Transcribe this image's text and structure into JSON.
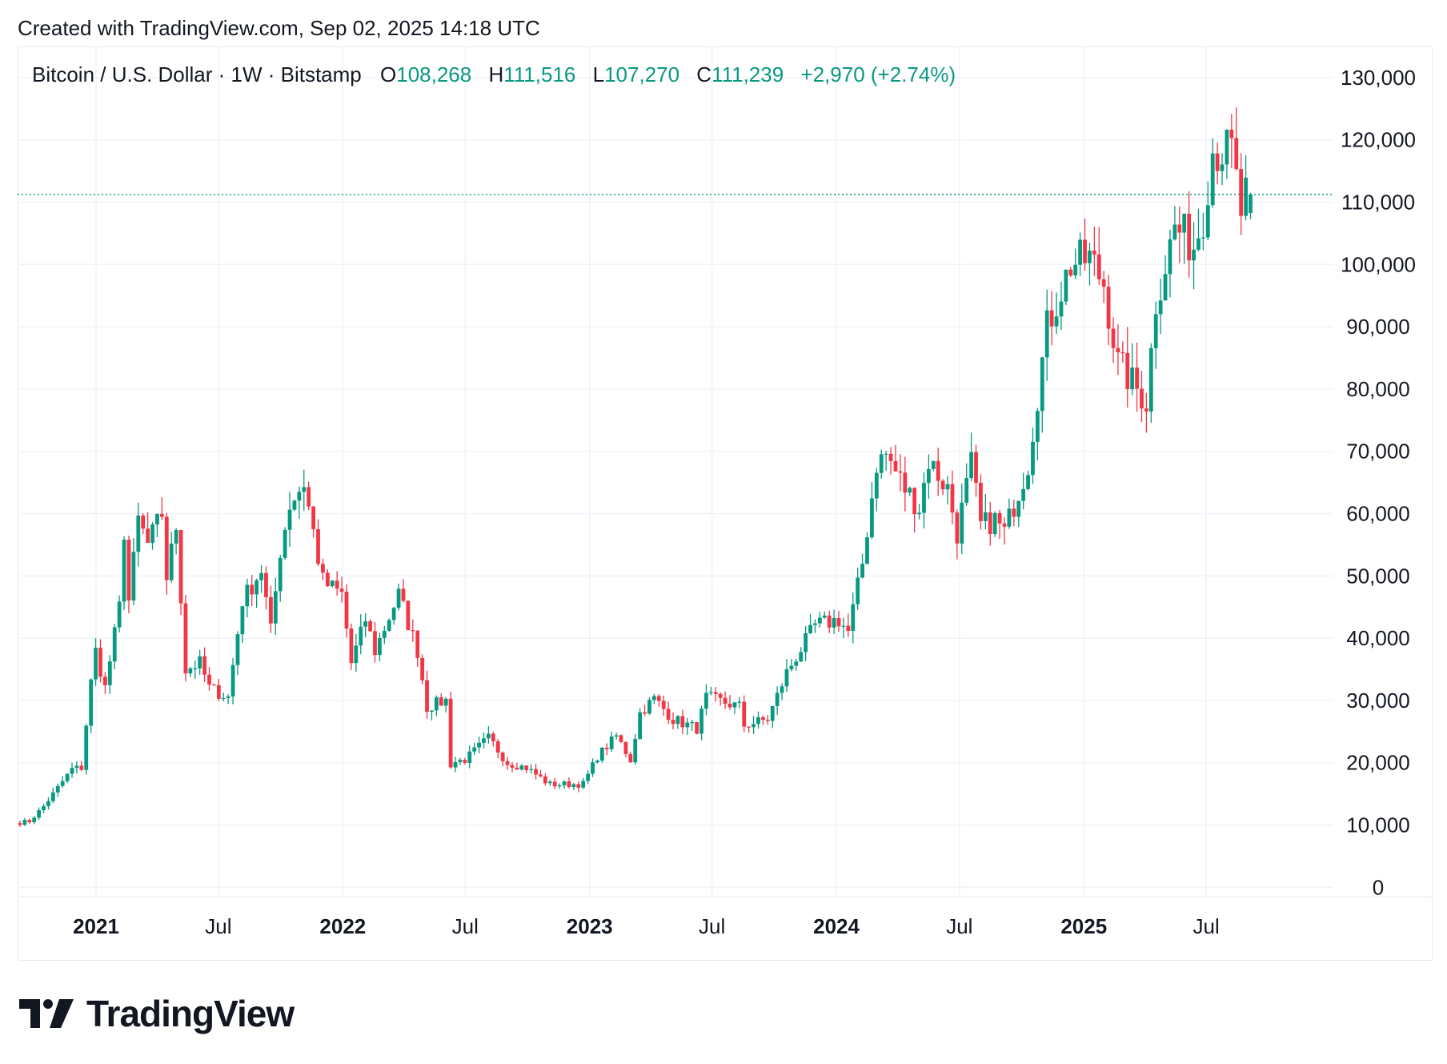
{
  "caption": "Created with TradingView.com, Sep 02, 2025 14:18 UTC",
  "legend": {
    "symbol": "Bitcoin / U.S. Dollar · 1W · Bitstamp",
    "open_label": "O",
    "open_value": "108,268",
    "high_label": "H",
    "high_value": "111,516",
    "low_label": "L",
    "low_value": "107,270",
    "close_label": "C",
    "close_value": "111,239",
    "change": "+2,970 (+2.74%)"
  },
  "brand": {
    "logo_icon": "tradingview-logo-icon",
    "name": "TradingView"
  },
  "colors": {
    "up": "#089981",
    "down": "#f23645",
    "grid": "#f0f3fa",
    "text": "#131722",
    "current_price_line": "#089981"
  },
  "chart_data": {
    "type": "candlestick",
    "title": "Bitcoin / U.S. Dollar · 1W · Bitstamp",
    "xlabel": "",
    "ylabel": "",
    "interval": "1W",
    "x_range": [
      "2020-09-07",
      "2026-01-05"
    ],
    "ylim": [
      -1500,
      135000
    ],
    "y_ticks": [
      0,
      10000,
      20000,
      30000,
      40000,
      50000,
      60000,
      70000,
      80000,
      90000,
      100000,
      110000,
      120000,
      130000
    ],
    "y_tick_labels": [
      "0",
      "10,000",
      "20,000",
      "30,000",
      "40,000",
      "50,000",
      "60,000",
      "70,000",
      "80,000",
      "90,000",
      "100,000",
      "110,000",
      "120,000",
      "130,000"
    ],
    "x_ticks": [
      {
        "date": "2021-01-01",
        "label": "2021",
        "year": true
      },
      {
        "date": "2021-07-01",
        "label": "Jul",
        "year": false
      },
      {
        "date": "2022-01-01",
        "label": "2022",
        "year": true
      },
      {
        "date": "2022-07-01",
        "label": "Jul",
        "year": false
      },
      {
        "date": "2023-01-01",
        "label": "2023",
        "year": true
      },
      {
        "date": "2023-07-01",
        "label": "Jul",
        "year": false
      },
      {
        "date": "2024-01-01",
        "label": "2024",
        "year": true
      },
      {
        "date": "2024-07-01",
        "label": "Jul",
        "year": false
      },
      {
        "date": "2025-01-01",
        "label": "2025",
        "year": true
      },
      {
        "date": "2025-07-01",
        "label": "Jul",
        "year": false
      }
    ],
    "current_price": 111239,
    "anchors": [
      [
        "2020-09-07",
        10300
      ],
      [
        "2020-09-28",
        10600
      ],
      [
        "2020-10-19",
        13000
      ],
      [
        "2020-11-09",
        16000
      ],
      [
        "2020-11-30",
        19000
      ],
      [
        "2020-12-14",
        19200
      ],
      [
        "2020-12-28",
        33000
      ],
      [
        "2021-01-04",
        38000
      ],
      [
        "2021-01-18",
        32000
      ],
      [
        "2021-02-08",
        45000
      ],
      [
        "2021-02-15",
        57000
      ],
      [
        "2021-02-22",
        46000
      ],
      [
        "2021-03-08",
        59000
      ],
      [
        "2021-03-22",
        55000
      ],
      [
        "2021-04-12",
        60000
      ],
      [
        "2021-04-19",
        50000
      ],
      [
        "2021-05-03",
        58000
      ],
      [
        "2021-05-10",
        47000
      ],
      [
        "2021-05-17",
        35000
      ],
      [
        "2021-06-07",
        36000
      ],
      [
        "2021-06-21",
        32000
      ],
      [
        "2021-07-19",
        30500
      ],
      [
        "2021-08-09",
        46000
      ],
      [
        "2021-09-06",
        51000
      ],
      [
        "2021-09-20",
        41000
      ],
      [
        "2021-10-04",
        54000
      ],
      [
        "2021-10-18",
        61500
      ],
      [
        "2021-11-08",
        65000
      ],
      [
        "2021-11-22",
        57000
      ],
      [
        "2021-12-06",
        49000
      ],
      [
        "2022-01-03",
        47000
      ],
      [
        "2022-01-17",
        36000
      ],
      [
        "2022-02-07",
        43000
      ],
      [
        "2022-02-21",
        38000
      ],
      [
        "2022-03-28",
        47000
      ],
      [
        "2022-04-25",
        38000
      ],
      [
        "2022-05-09",
        29000
      ],
      [
        "2022-06-06",
        30000
      ],
      [
        "2022-06-13",
        20000
      ],
      [
        "2022-07-04",
        20500
      ],
      [
        "2022-08-08",
        24000
      ],
      [
        "2022-09-05",
        20000
      ],
      [
        "2022-10-03",
        19200
      ],
      [
        "2022-11-07",
        16500
      ],
      [
        "2022-12-26",
        16600
      ],
      [
        "2023-01-16",
        21000
      ],
      [
        "2023-02-13",
        24300
      ],
      [
        "2023-03-06",
        20500
      ],
      [
        "2023-03-20",
        28000
      ],
      [
        "2023-04-10",
        30300
      ],
      [
        "2023-05-08",
        27000
      ],
      [
        "2023-06-12",
        25500
      ],
      [
        "2023-06-26",
        30500
      ],
      [
        "2023-08-14",
        29000
      ],
      [
        "2023-08-21",
        26000
      ],
      [
        "2023-09-25",
        27000
      ],
      [
        "2023-10-23",
        34500
      ],
      [
        "2023-12-04",
        42000
      ],
      [
        "2024-01-08",
        43000
      ],
      [
        "2024-01-22",
        41000
      ],
      [
        "2024-02-12",
        52000
      ],
      [
        "2024-03-04",
        68000
      ],
      [
        "2024-03-18",
        69500
      ],
      [
        "2024-04-15",
        64000
      ],
      [
        "2024-05-06",
        61000
      ],
      [
        "2024-05-20",
        68500
      ],
      [
        "2024-06-17",
        64000
      ],
      [
        "2024-07-01",
        57000
      ],
      [
        "2024-07-22",
        68000
      ],
      [
        "2024-08-05",
        58000
      ],
      [
        "2024-08-26",
        59000
      ],
      [
        "2024-09-09",
        57000
      ],
      [
        "2024-10-14",
        68000
      ],
      [
        "2024-11-11",
        90000
      ],
      [
        "2024-12-16",
        100000
      ],
      [
        "2025-01-13",
        101000
      ],
      [
        "2025-02-03",
        97000
      ],
      [
        "2025-02-24",
        84000
      ],
      [
        "2025-03-10",
        82000
      ],
      [
        "2025-04-07",
        78000
      ],
      [
        "2025-04-21",
        94000
      ],
      [
        "2025-05-19",
        106000
      ],
      [
        "2025-06-16",
        103000
      ],
      [
        "2025-06-30",
        108000
      ],
      [
        "2025-07-14",
        118500
      ],
      [
        "2025-08-11",
        118000
      ],
      [
        "2025-08-25",
        108300
      ],
      [
        "2025-09-01",
        111239
      ]
    ]
  }
}
